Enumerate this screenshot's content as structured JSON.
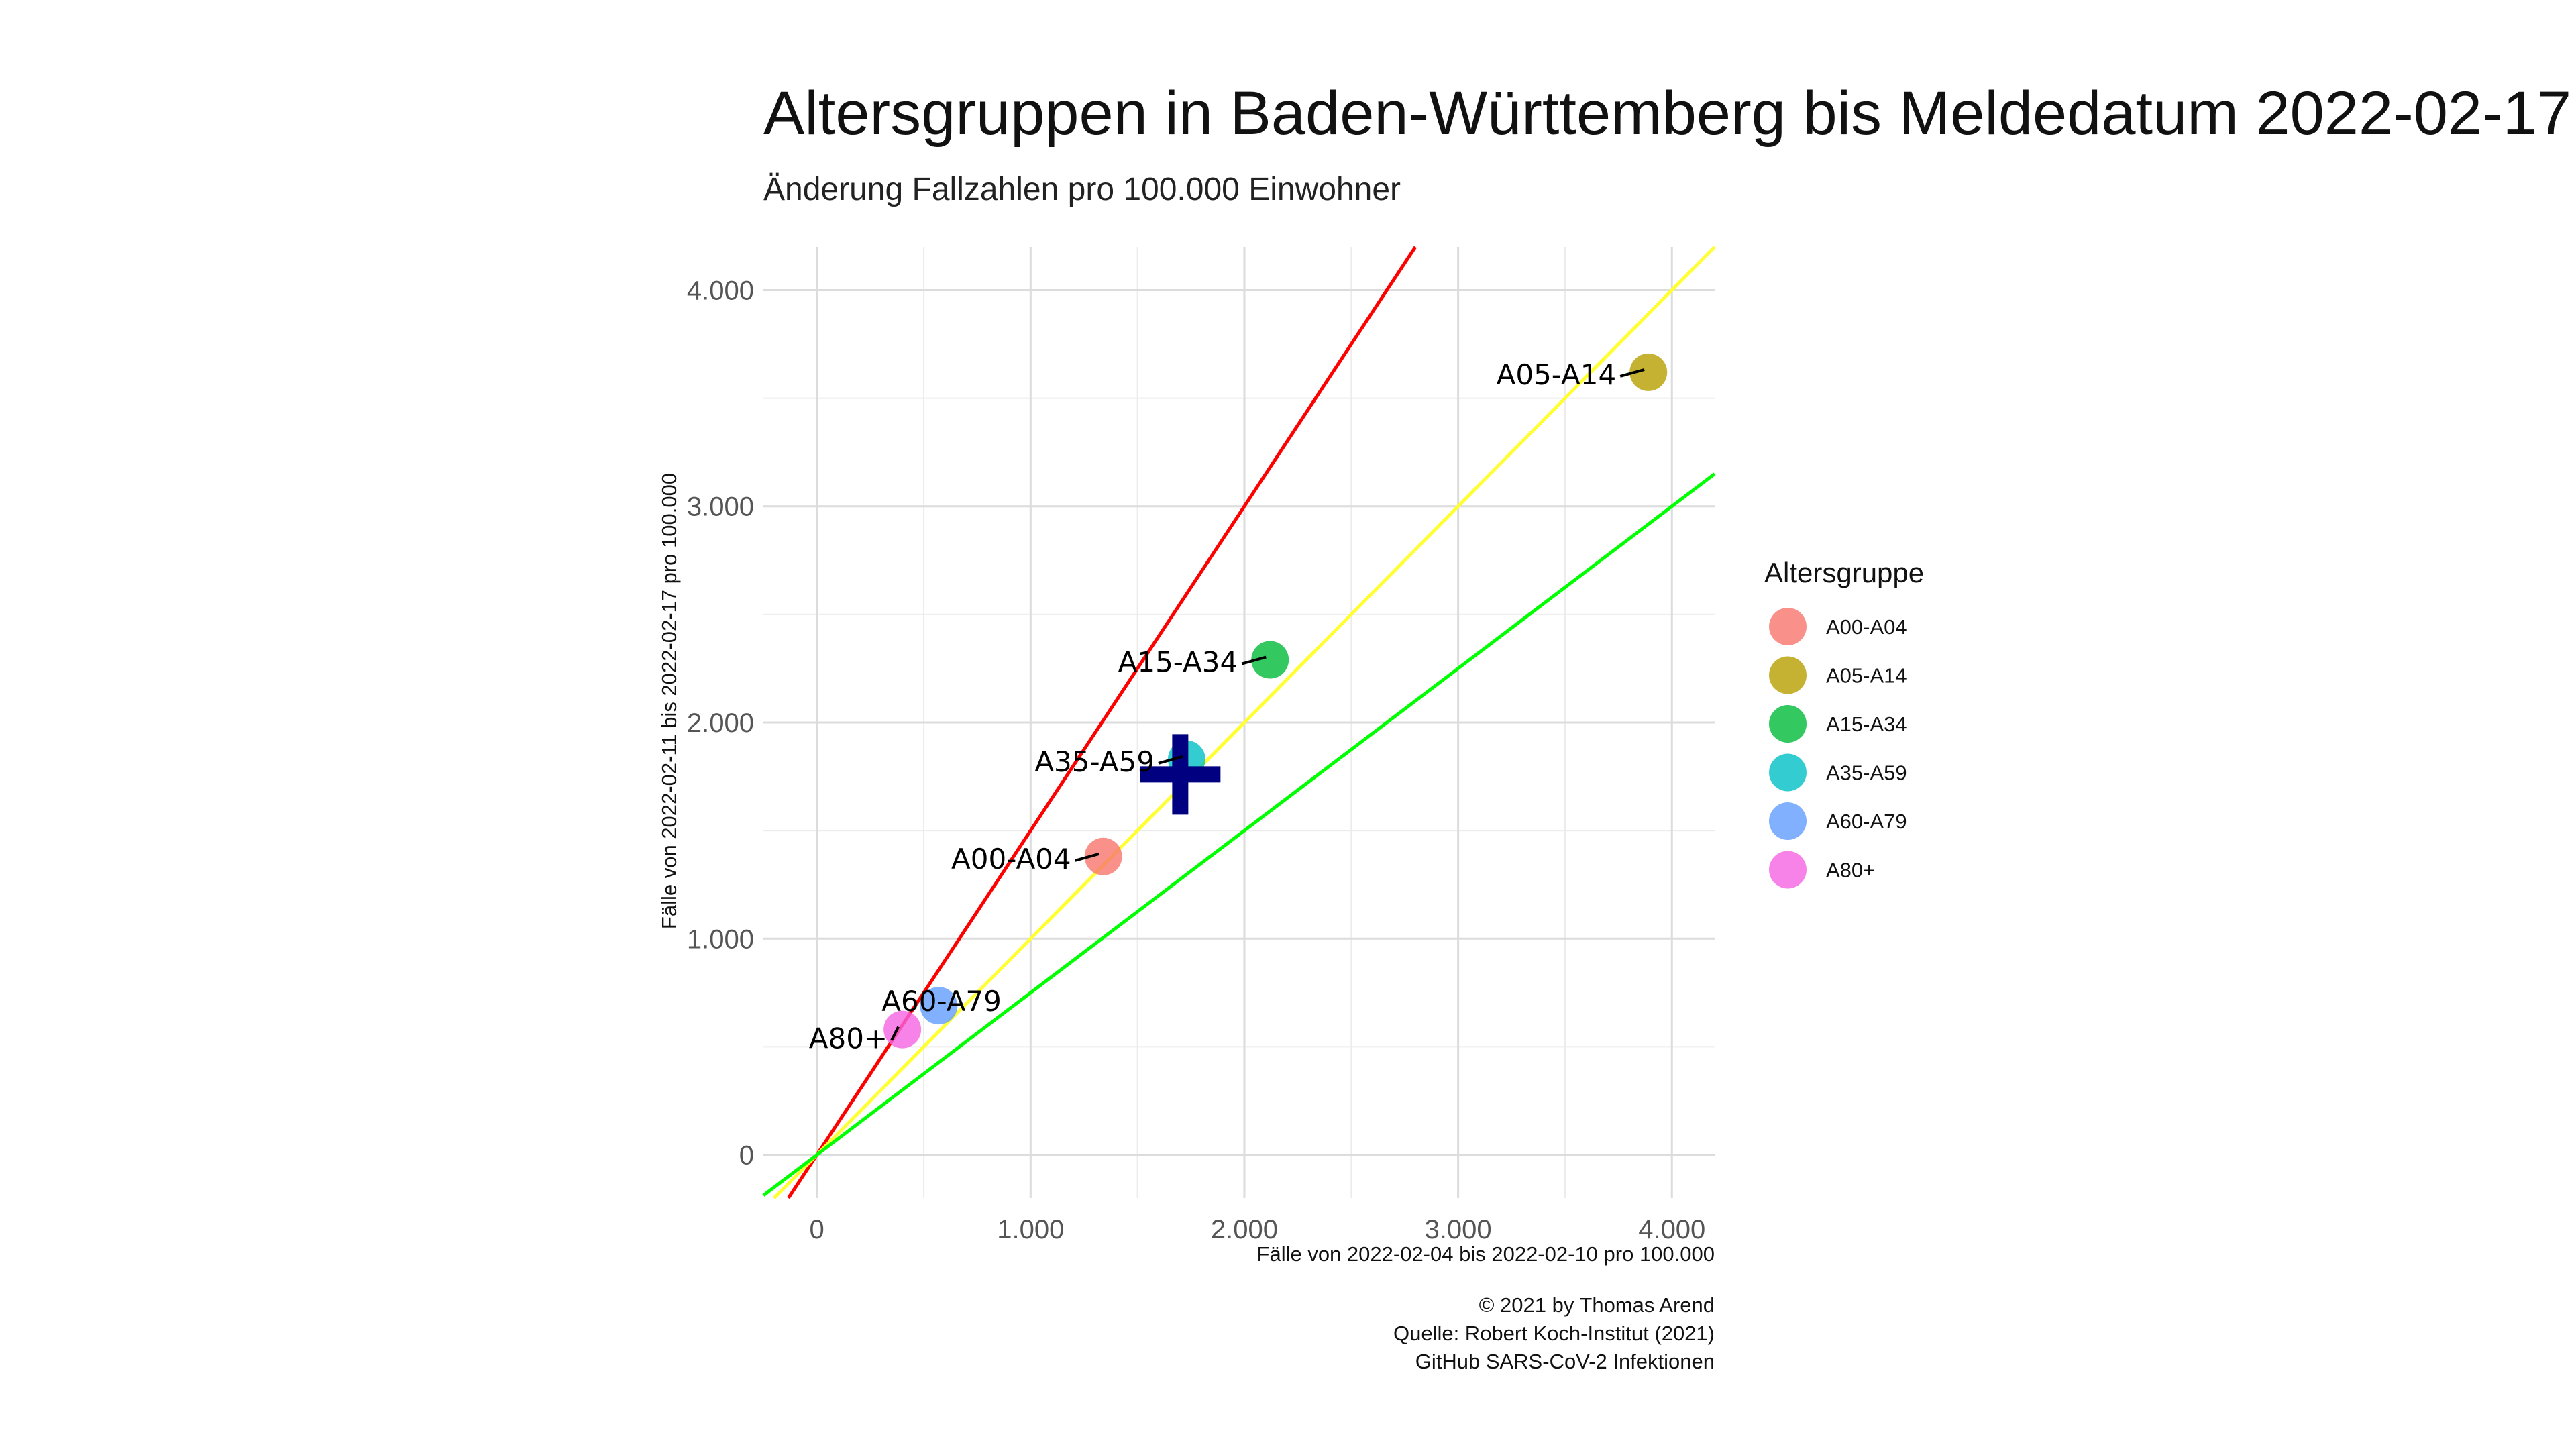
{
  "chart_data": {
    "type": "scatter",
    "title": "Altersgruppen in Baden-Württemberg bis Meldedatum 2022-02-17",
    "subtitle": "Änderung Fallzahlen pro 100.000 Einwohner",
    "xlabel": "Fälle von 2022-02-04 bis 2022-02-10 pro 100.000",
    "ylabel": "Fälle von 2022-02-11 bis 2022-02-17 pro 100.000",
    "xlim": [
      -250,
      4200
    ],
    "ylim": [
      -200,
      4200
    ],
    "x_ticks": [
      0,
      1000,
      2000,
      3000,
      4000
    ],
    "x_tick_labels": [
      "0",
      "1.000",
      "2.000",
      "3.000",
      "4.000"
    ],
    "y_ticks": [
      0,
      1000,
      2000,
      3000,
      4000
    ],
    "y_tick_labels": [
      "0",
      "1.000",
      "2.000",
      "3.000",
      "4.000"
    ],
    "grid": true,
    "legend": {
      "title": "Altersgruppe",
      "position": "right"
    },
    "series": [
      {
        "name": "A00-A04",
        "x": 1340,
        "y": 1380,
        "color": "#F8766D"
      },
      {
        "name": "A05-A14",
        "x": 3890,
        "y": 3620,
        "color": "#B79F00"
      },
      {
        "name": "A15-A34",
        "x": 2120,
        "y": 2290,
        "color": "#00BA38"
      },
      {
        "name": "A35-A59",
        "x": 1730,
        "y": 1830,
        "color": "#00BFC4"
      },
      {
        "name": "A60-A79",
        "x": 570,
        "y": 690,
        "color": "#619CFF"
      },
      {
        "name": "A80+",
        "x": 400,
        "y": 580,
        "color": "#F564E3"
      }
    ],
    "reference_lines": [
      {
        "slope": 1.5,
        "color": "#FF0000"
      },
      {
        "slope": 1.0,
        "color": "#FFFF33"
      },
      {
        "slope": 0.75,
        "color": "#00FF00"
      }
    ],
    "mean_marker": {
      "x": 1700,
      "y": 1760,
      "color": "#000080"
    }
  },
  "caption": {
    "line1": "© 2021 by Thomas Arend",
    "line2": "Quelle: Robert Koch-Institut (2021)",
    "line3": "GitHub SARS-CoV-2 Infektionen"
  }
}
